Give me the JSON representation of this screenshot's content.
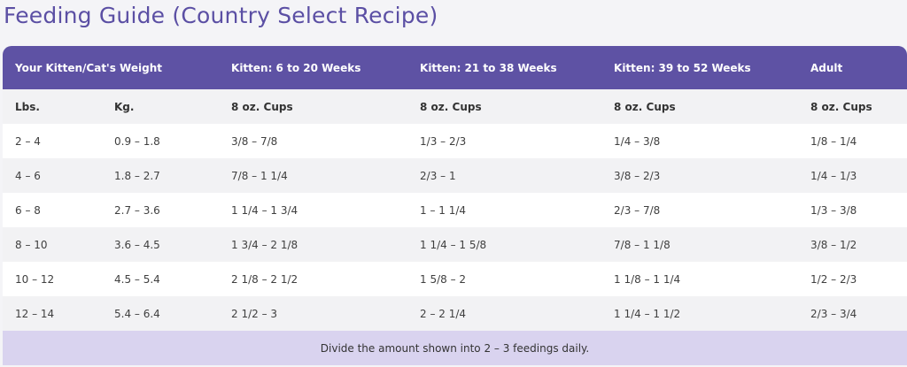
{
  "title": "Feeding Guide (Country Select Recipe)",
  "header": {
    "weight": "Your Kitten/Cat's Weight",
    "k1": "Kitten: 6 to 20 Weeks",
    "k2": "Kitten: 21 to 38 Weeks",
    "k3": "Kitten: 39 to 52 Weeks",
    "adult": "Adult"
  },
  "units": {
    "lbs": "Lbs.",
    "kg": "Kg.",
    "k1": "8 oz. Cups",
    "k2": "8 oz. Cups",
    "k3": "8 oz. Cups",
    "adult": "8 oz. Cups"
  },
  "rows": [
    {
      "lbs": "2 – 4",
      "kg": "0.9 – 1.8",
      "k1": "3/8 – 7/8",
      "k2": "1/3 – 2/3",
      "k3": "1/4 – 3/8",
      "adult": "1/8 – 1/4"
    },
    {
      "lbs": "4 – 6",
      "kg": "1.8 – 2.7",
      "k1": "7/8 – 1 1/4",
      "k2": "2/3 – 1",
      "k3": "3/8 – 2/3",
      "adult": "1/4 – 1/3"
    },
    {
      "lbs": "6 – 8",
      "kg": "2.7 – 3.6",
      "k1": "1 1/4 – 1 3/4",
      "k2": "1 – 1 1/4",
      "k3": "2/3 – 7/8",
      "adult": "1/3 – 3/8"
    },
    {
      "lbs": "8 – 10",
      "kg": "3.6 – 4.5",
      "k1": "1 3/4 – 2 1/8",
      "k2": "1 1/4 – 1 5/8",
      "k3": "7/8 – 1 1/8",
      "adult": "3/8 – 1/2"
    },
    {
      "lbs": "10 – 12",
      "kg": "4.5 – 5.4",
      "k1": "2 1/8 – 2 1/2",
      "k2": "1 5/8 – 2",
      "k3": "1 1/8 – 1 1/4",
      "adult": "1/2 – 2/3"
    },
    {
      "lbs": "12 – 14",
      "kg": "5.4 – 6.4",
      "k1": "2 1/2 – 3",
      "k2": "2 – 2 1/4",
      "k3": "1 1/4 – 1 1/2",
      "adult": "2/3 – 3/4"
    }
  ],
  "note": "Divide the amount shown into 2 – 3 feedings daily.",
  "colors": {
    "header_bg": "#5e52a4",
    "title": "#5b4fa4",
    "note_bg": "#d9d3ef"
  }
}
